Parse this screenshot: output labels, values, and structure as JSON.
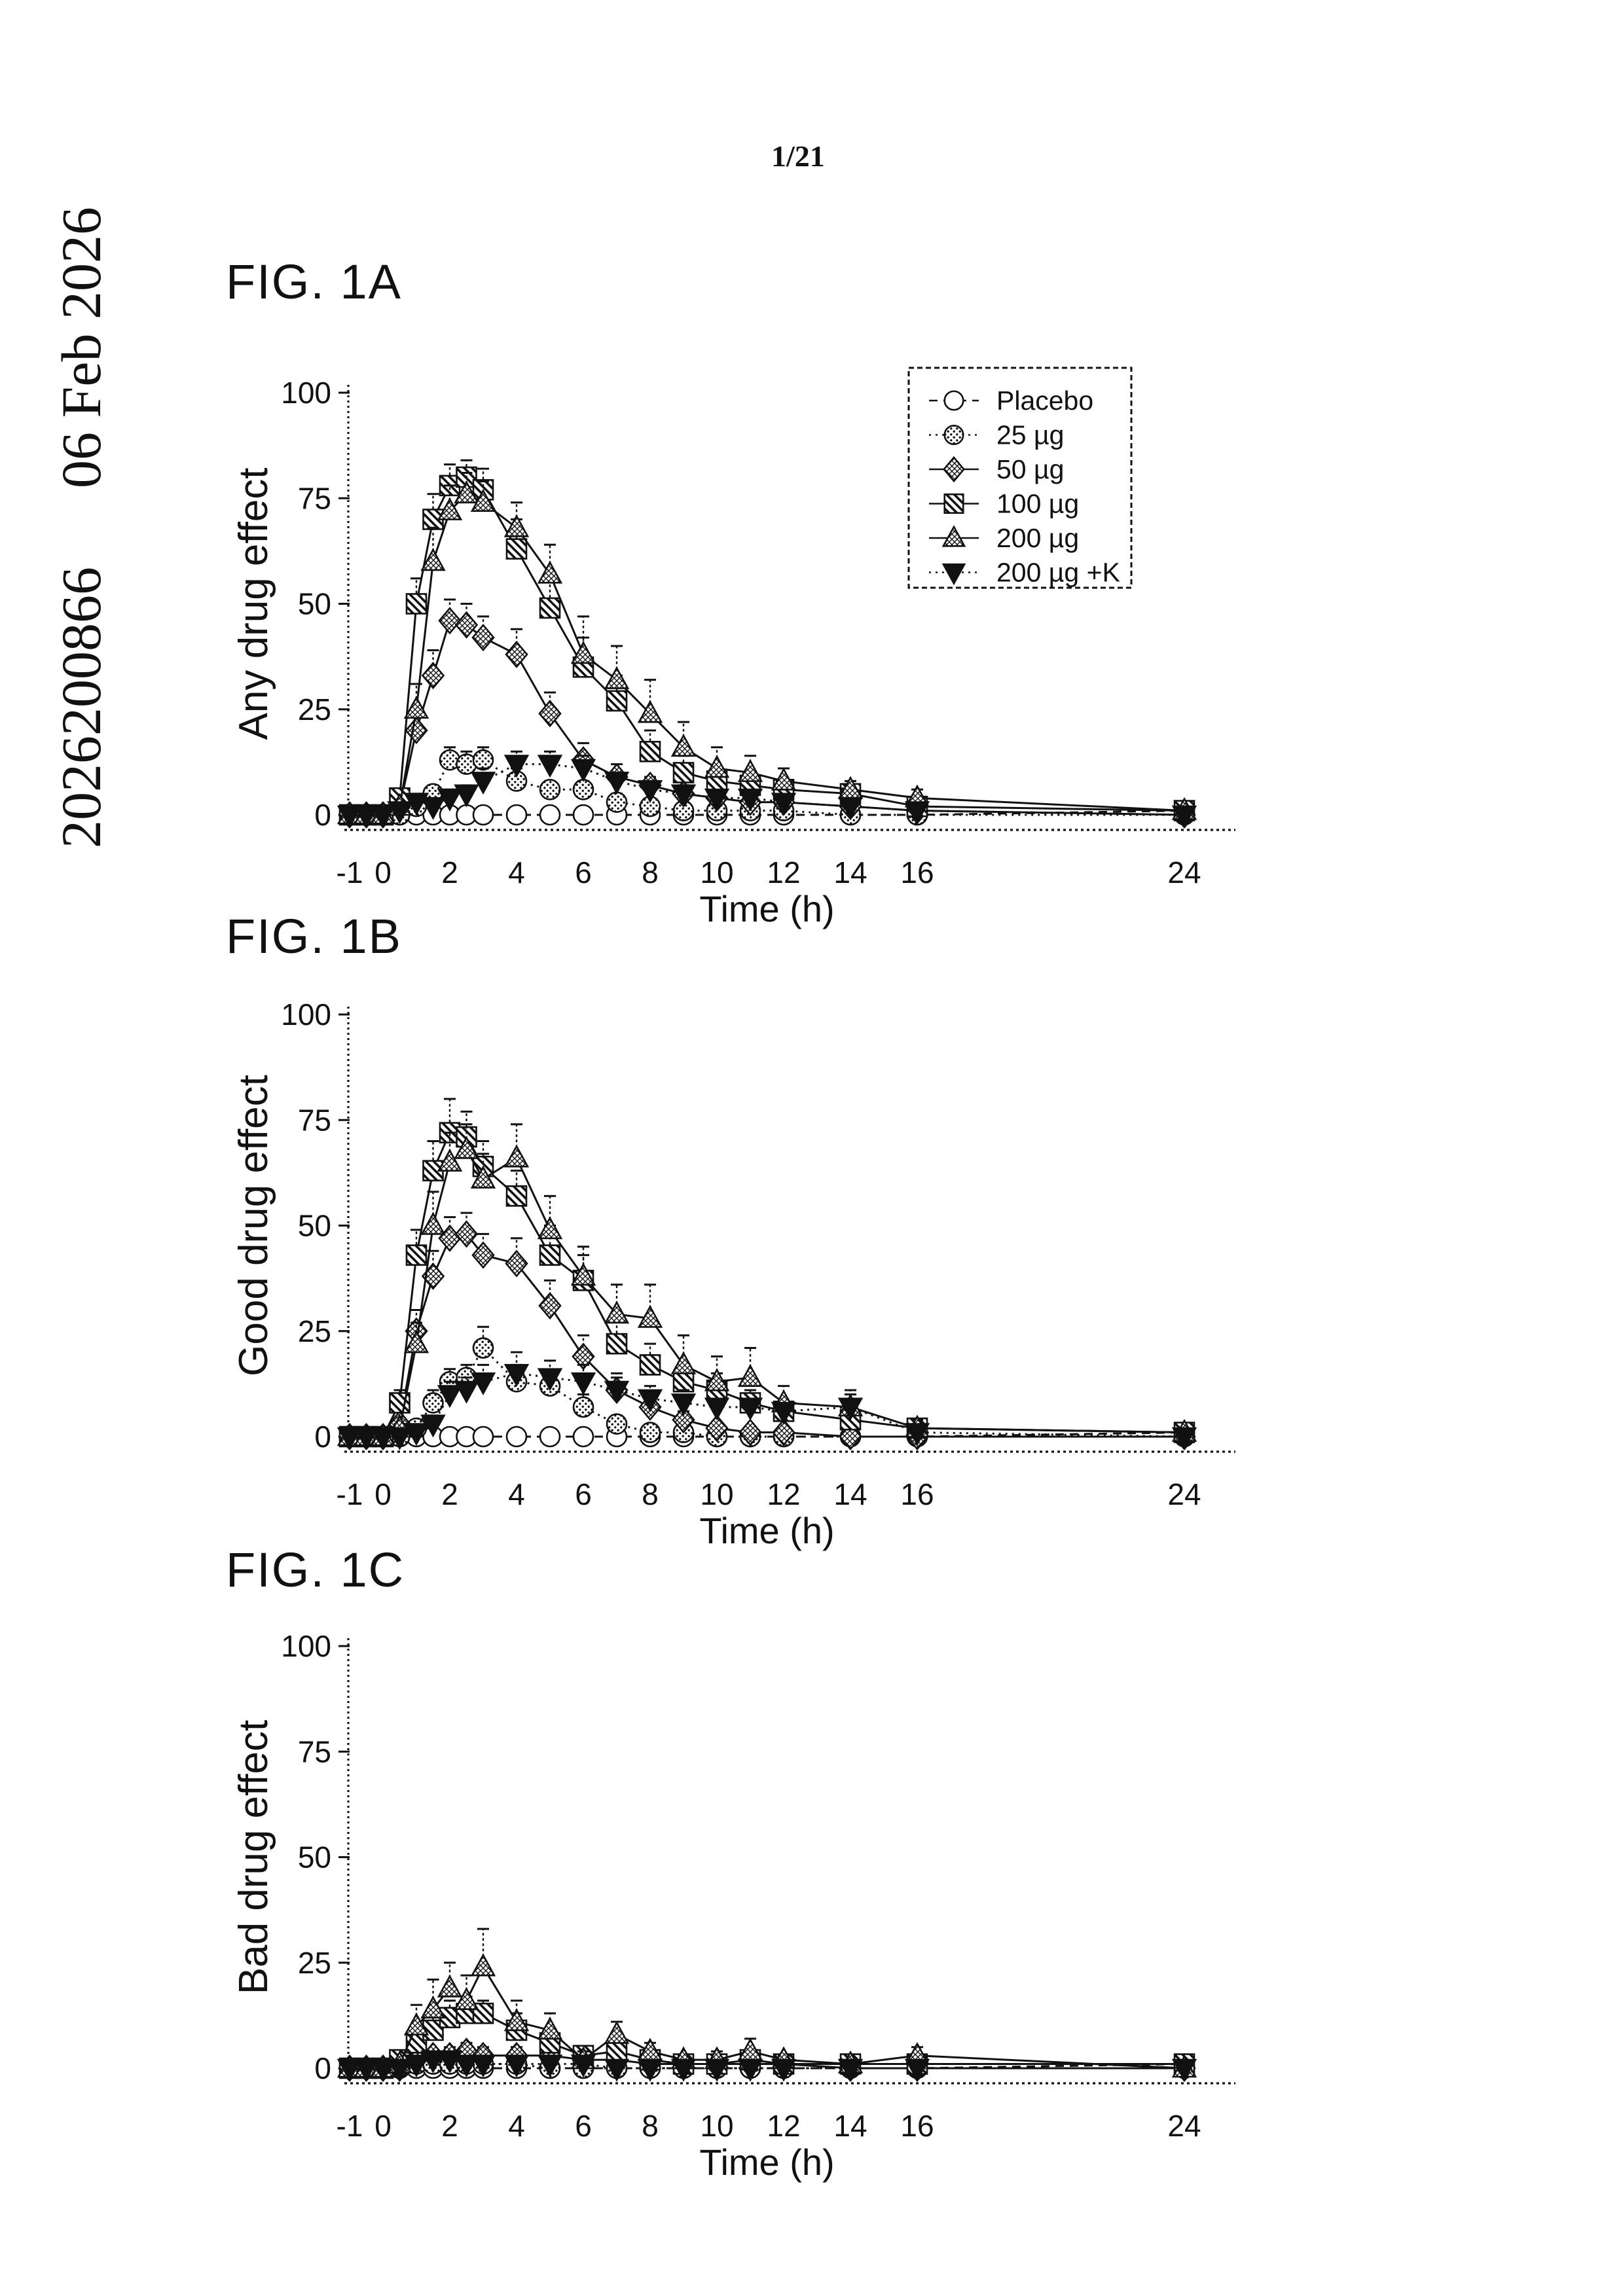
{
  "page": {
    "page_number": "1/21",
    "sidebar": {
      "patent_number": "2026200866",
      "date": "06 Feb 2026"
    }
  },
  "styles": {
    "ink": "#111111",
    "paper": "#ffffff"
  },
  "chart_data": [
    {
      "type": "line",
      "figure_label": "FIG. 1A",
      "title": "",
      "ylabel": "Any drug effect",
      "xlabel": "Time (h)",
      "ylim": [
        0,
        100
      ],
      "xlim": [
        -1,
        24
      ],
      "yticks": [
        0,
        25,
        50,
        75,
        100
      ],
      "xticks": [
        -1,
        0,
        2,
        4,
        6,
        8,
        10,
        12,
        14,
        16,
        24
      ],
      "grid": false,
      "legend_visible": true,
      "legend_position": "top-right",
      "x": [
        -1,
        -0.5,
        0,
        0.5,
        1,
        1.5,
        2,
        2.5,
        3,
        4,
        5,
        6,
        7,
        8,
        9,
        10,
        11,
        12,
        14,
        16,
        24
      ],
      "series": [
        {
          "name": "Placebo",
          "marker": "circle",
          "fill": "open",
          "line": "dash",
          "values": [
            0,
            0,
            0,
            0,
            0,
            0,
            0,
            0,
            0,
            0,
            0,
            0,
            0,
            0,
            0,
            0,
            0,
            0,
            0,
            0,
            1
          ],
          "errors": [
            1,
            1,
            1,
            1,
            1,
            1,
            1,
            1,
            1,
            1,
            1,
            1,
            1,
            1,
            1,
            1,
            1,
            1,
            1,
            1,
            1
          ]
        },
        {
          "name": "25 µg",
          "marker": "circle",
          "fill": "dots",
          "line": "dot",
          "values": [
            0,
            0,
            0,
            0,
            2,
            5,
            13,
            12,
            13,
            8,
            6,
            6,
            3,
            2,
            1,
            1,
            1,
            1,
            0,
            0,
            0
          ],
          "errors": [
            0,
            0,
            0,
            1,
            1,
            2,
            3,
            3,
            3,
            3,
            2,
            2,
            2,
            1,
            1,
            1,
            1,
            1,
            0,
            0,
            0
          ]
        },
        {
          "name": "50 µg",
          "marker": "diamond",
          "fill": "cross",
          "line": "solid",
          "values": [
            0,
            0,
            0,
            2,
            20,
            33,
            46,
            45,
            42,
            38,
            24,
            13,
            9,
            7,
            5,
            4,
            3,
            3,
            2,
            1,
            0
          ],
          "errors": [
            0,
            0,
            0,
            1,
            5,
            6,
            5,
            5,
            5,
            6,
            5,
            4,
            3,
            2,
            2,
            1,
            1,
            1,
            1,
            1,
            0
          ]
        },
        {
          "name": "100 µg",
          "marker": "square",
          "fill": "hatch",
          "line": "solid",
          "values": [
            0,
            0,
            0,
            4,
            50,
            70,
            78,
            80,
            77,
            63,
            49,
            35,
            27,
            15,
            10,
            8,
            7,
            6,
            5,
            2,
            1
          ],
          "errors": [
            0,
            0,
            0,
            2,
            6,
            6,
            5,
            4,
            5,
            7,
            7,
            7,
            6,
            5,
            4,
            3,
            3,
            2,
            2,
            1,
            1
          ]
        },
        {
          "name": "200 µg",
          "marker": "triangle-up",
          "fill": "cross",
          "line": "solid",
          "values": [
            0,
            0,
            0,
            2,
            25,
            60,
            72,
            76,
            74,
            68,
            57,
            38,
            32,
            24,
            16,
            11,
            10,
            8,
            6,
            4,
            1
          ],
          "errors": [
            0,
            0,
            0,
            1,
            6,
            8,
            6,
            5,
            5,
            6,
            7,
            9,
            8,
            8,
            6,
            5,
            4,
            3,
            2,
            2,
            1
          ]
        },
        {
          "name": "200 µg +K",
          "marker": "triangle-down",
          "fill": "solid",
          "line": "dot",
          "values": [
            0,
            0,
            0,
            1,
            3,
            2,
            4,
            5,
            8,
            12,
            12,
            11,
            8,
            6,
            5,
            4,
            4,
            3,
            2,
            1,
            0
          ],
          "errors": [
            0,
            0,
            0,
            1,
            2,
            1,
            2,
            2,
            3,
            3,
            3,
            3,
            2,
            2,
            2,
            1,
            1,
            1,
            1,
            1,
            0
          ]
        }
      ]
    },
    {
      "type": "line",
      "figure_label": "FIG. 1B",
      "title": "",
      "ylabel": "Good drug effect",
      "xlabel": "Time (h)",
      "ylim": [
        0,
        100
      ],
      "xlim": [
        -1,
        24
      ],
      "yticks": [
        0,
        25,
        50,
        75,
        100
      ],
      "xticks": [
        -1,
        0,
        2,
        4,
        6,
        8,
        10,
        12,
        14,
        16,
        24
      ],
      "grid": false,
      "legend_visible": false,
      "legend_position": "none",
      "x": [
        -1,
        -0.5,
        0,
        0.5,
        1,
        1.5,
        2,
        2.5,
        3,
        4,
        5,
        6,
        7,
        8,
        9,
        10,
        11,
        12,
        14,
        16,
        24
      ],
      "series": [
        {
          "name": "Placebo",
          "marker": "circle",
          "fill": "open",
          "line": "dash",
          "values": [
            0,
            0,
            0,
            0,
            0,
            0,
            0,
            0,
            0,
            0,
            0,
            0,
            0,
            0,
            0,
            0,
            0,
            0,
            0,
            0,
            1
          ],
          "errors": [
            1,
            1,
            1,
            1,
            1,
            1,
            1,
            1,
            1,
            1,
            1,
            1,
            1,
            1,
            1,
            1,
            1,
            1,
            1,
            1,
            1
          ]
        },
        {
          "name": "25 µg",
          "marker": "circle",
          "fill": "dots",
          "line": "dot",
          "values": [
            0,
            0,
            0,
            0,
            2,
            8,
            13,
            14,
            21,
            13,
            12,
            7,
            3,
            1,
            1,
            0,
            0,
            0,
            0,
            0,
            0
          ],
          "errors": [
            0,
            0,
            0,
            0,
            1,
            3,
            3,
            3,
            5,
            4,
            3,
            3,
            2,
            1,
            1,
            0,
            0,
            0,
            0,
            0,
            0
          ]
        },
        {
          "name": "50 µg",
          "marker": "diamond",
          "fill": "cross",
          "line": "solid",
          "values": [
            0,
            0,
            0,
            3,
            25,
            38,
            47,
            48,
            43,
            41,
            31,
            19,
            11,
            7,
            4,
            2,
            1,
            1,
            0,
            0,
            0
          ],
          "errors": [
            0,
            0,
            0,
            1,
            5,
            6,
            5,
            5,
            5,
            6,
            6,
            5,
            4,
            3,
            2,
            1,
            1,
            1,
            0,
            0,
            0
          ]
        },
        {
          "name": "100 µg",
          "marker": "square",
          "fill": "hatch",
          "line": "solid",
          "values": [
            0,
            0,
            0,
            8,
            43,
            63,
            72,
            71,
            64,
            57,
            43,
            37,
            22,
            17,
            13,
            11,
            8,
            6,
            4,
            2,
            1
          ],
          "errors": [
            0,
            0,
            0,
            3,
            6,
            7,
            8,
            6,
            6,
            6,
            7,
            6,
            6,
            5,
            4,
            4,
            3,
            2,
            2,
            1,
            1
          ]
        },
        {
          "name": "200 µg",
          "marker": "triangle-up",
          "fill": "cross",
          "line": "solid",
          "values": [
            0,
            0,
            0,
            2,
            22,
            50,
            65,
            68,
            61,
            66,
            49,
            38,
            29,
            28,
            17,
            13,
            14,
            8,
            7,
            2,
            1
          ],
          "errors": [
            0,
            0,
            0,
            1,
            5,
            8,
            7,
            6,
            6,
            8,
            8,
            7,
            7,
            8,
            7,
            6,
            7,
            4,
            4,
            2,
            1
          ]
        },
        {
          "name": "200 µg +K",
          "marker": "triangle-down",
          "fill": "solid",
          "line": "dot",
          "values": [
            0,
            0,
            0,
            0,
            1,
            3,
            10,
            11,
            13,
            15,
            14,
            13,
            11,
            9,
            8,
            7,
            7,
            6,
            7,
            1,
            0
          ],
          "errors": [
            0,
            0,
            0,
            0,
            1,
            2,
            3,
            3,
            4,
            5,
            4,
            4,
            3,
            3,
            3,
            2,
            2,
            2,
            3,
            1,
            0
          ]
        }
      ]
    },
    {
      "type": "line",
      "figure_label": "FIG. 1C",
      "title": "",
      "ylabel": "Bad drug effect",
      "xlabel": "Time (h)",
      "ylim": [
        0,
        100
      ],
      "xlim": [
        -1,
        24
      ],
      "yticks": [
        0,
        25,
        50,
        75,
        100
      ],
      "xticks": [
        -1,
        0,
        2,
        4,
        6,
        8,
        10,
        12,
        14,
        16,
        24
      ],
      "grid": false,
      "legend_visible": false,
      "legend_position": "none",
      "x": [
        -1,
        -0.5,
        0,
        0.5,
        1,
        1.5,
        2,
        2.5,
        3,
        4,
        5,
        6,
        7,
        8,
        9,
        10,
        11,
        12,
        14,
        16,
        24
      ],
      "series": [
        {
          "name": "Placebo",
          "marker": "circle",
          "fill": "open",
          "line": "dash",
          "values": [
            0,
            0,
            0,
            0,
            0,
            0,
            0,
            0,
            0,
            0,
            0,
            0,
            0,
            0,
            0,
            0,
            0,
            0,
            0,
            0,
            1
          ],
          "errors": [
            1,
            1,
            1,
            1,
            1,
            1,
            1,
            1,
            1,
            1,
            1,
            1,
            1,
            1,
            1,
            1,
            1,
            1,
            1,
            1,
            1
          ]
        },
        {
          "name": "25 µg",
          "marker": "circle",
          "fill": "dots",
          "line": "dot",
          "values": [
            0,
            0,
            0,
            0,
            1,
            1,
            1,
            1,
            1,
            1,
            0,
            0,
            0,
            0,
            0,
            0,
            0,
            0,
            0,
            0,
            0
          ],
          "errors": [
            0,
            0,
            0,
            0,
            1,
            1,
            1,
            1,
            1,
            1,
            0,
            0,
            0,
            0,
            0,
            0,
            0,
            0,
            0,
            0,
            0
          ]
        },
        {
          "name": "50 µg",
          "marker": "diamond",
          "fill": "cross",
          "line": "solid",
          "values": [
            0,
            0,
            0,
            0,
            2,
            3,
            3,
            4,
            3,
            3,
            3,
            2,
            2,
            1,
            1,
            1,
            1,
            1,
            0,
            0,
            0
          ],
          "errors": [
            0,
            0,
            0,
            0,
            1,
            1,
            2,
            2,
            2,
            2,
            2,
            1,
            1,
            1,
            1,
            1,
            1,
            1,
            0,
            0,
            0
          ]
        },
        {
          "name": "100 µg",
          "marker": "square",
          "fill": "hatch",
          "line": "solid",
          "values": [
            0,
            0,
            0,
            2,
            6,
            9,
            12,
            13,
            13,
            9,
            6,
            3,
            4,
            2,
            1,
            1,
            2,
            1,
            1,
            1,
            1
          ],
          "errors": [
            0,
            0,
            0,
            1,
            3,
            4,
            4,
            4,
            3,
            4,
            3,
            2,
            2,
            1,
            1,
            1,
            1,
            1,
            1,
            1,
            1
          ]
        },
        {
          "name": "200 µg",
          "marker": "triangle-up",
          "fill": "cross",
          "line": "solid",
          "values": [
            0,
            0,
            0,
            1,
            10,
            14,
            19,
            16,
            24,
            11,
            9,
            2,
            8,
            4,
            2,
            2,
            4,
            2,
            1,
            3,
            0
          ],
          "errors": [
            0,
            0,
            0,
            1,
            5,
            7,
            6,
            6,
            9,
            5,
            4,
            2,
            3,
            2,
            1,
            2,
            3,
            1,
            1,
            2,
            1
          ]
        },
        {
          "name": "200 µg +K",
          "marker": "triangle-down",
          "fill": "solid",
          "line": "dot",
          "values": [
            0,
            0,
            0,
            0,
            1,
            2,
            2,
            1,
            1,
            1,
            1,
            1,
            0,
            0,
            0,
            0,
            0,
            0,
            0,
            0,
            0
          ],
          "errors": [
            0,
            0,
            0,
            0,
            1,
            1,
            1,
            1,
            1,
            1,
            1,
            1,
            0,
            0,
            0,
            0,
            0,
            0,
            0,
            0,
            0
          ]
        }
      ]
    }
  ]
}
